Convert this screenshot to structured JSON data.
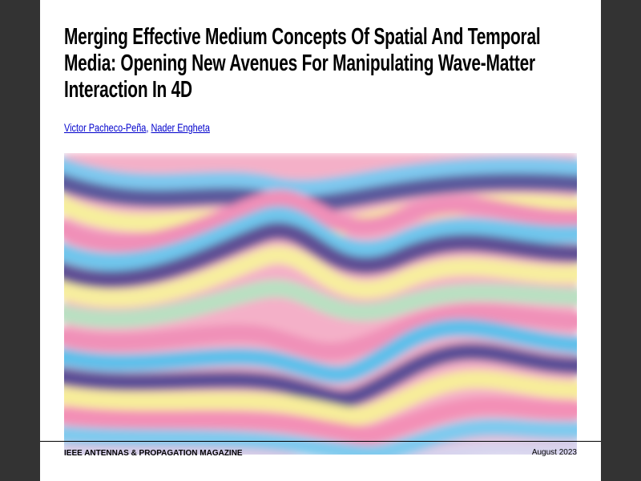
{
  "article": {
    "title": "Merging Effective Medium Concepts Of Spatial And Temporal Media: Opening New Avenues For Manipulating Wave-Matter Interaction In 4D",
    "authors": [
      "Victor Pacheco-Peña",
      "Nader Engheta"
    ],
    "author_separator": ","
  },
  "footer": {
    "publication": "IEEE ANTENNAS & PROPAGATION MAGAZINE",
    "date": "August 2023"
  }
}
